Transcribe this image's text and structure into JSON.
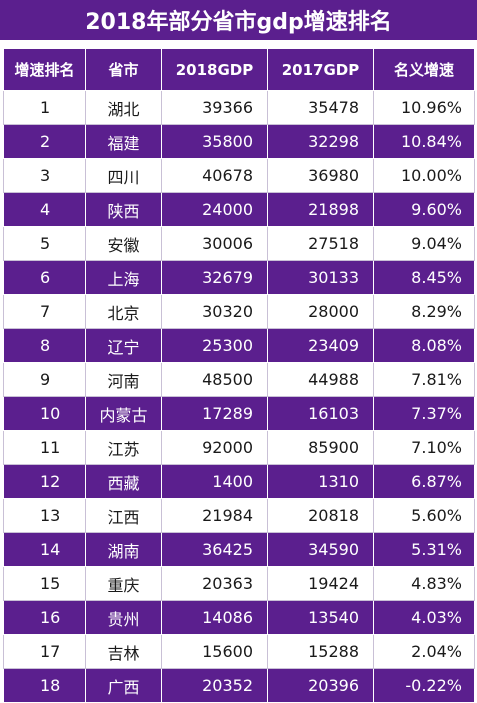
{
  "title": "2018年部分省市gdp增速排名",
  "headers": [
    "增速排名",
    "省市",
    "2018GDP",
    "2017GDP",
    "名义增速"
  ],
  "rows": [
    {
      "rank": "1",
      "region": "湖北",
      "gdp2018": "39366",
      "gdp2017": "35478",
      "growth": "10.96%"
    },
    {
      "rank": "2",
      "region": "福建",
      "gdp2018": "35800",
      "gdp2017": "32298",
      "growth": "10.84%"
    },
    {
      "rank": "3",
      "region": "四川",
      "gdp2018": "40678",
      "gdp2017": "36980",
      "growth": "10.00%"
    },
    {
      "rank": "4",
      "region": "陕西",
      "gdp2018": "24000",
      "gdp2017": "21898",
      "growth": "9.60%"
    },
    {
      "rank": "5",
      "region": "安徽",
      "gdp2018": "30006",
      "gdp2017": "27518",
      "growth": "9.04%"
    },
    {
      "rank": "6",
      "region": "上海",
      "gdp2018": "32679",
      "gdp2017": "30133",
      "growth": "8.45%"
    },
    {
      "rank": "7",
      "region": "北京",
      "gdp2018": "30320",
      "gdp2017": "28000",
      "growth": "8.29%"
    },
    {
      "rank": "8",
      "region": "辽宁",
      "gdp2018": "25300",
      "gdp2017": "23409",
      "growth": "8.08%"
    },
    {
      "rank": "9",
      "region": "河南",
      "gdp2018": "48500",
      "gdp2017": "44988",
      "growth": "7.81%"
    },
    {
      "rank": "10",
      "region": "内蒙古",
      "gdp2018": "17289",
      "gdp2017": "16103",
      "growth": "7.37%"
    },
    {
      "rank": "11",
      "region": "江苏",
      "gdp2018": "92000",
      "gdp2017": "85900",
      "growth": "7.10%"
    },
    {
      "rank": "12",
      "region": "西藏",
      "gdp2018": "1400",
      "gdp2017": "1310",
      "growth": "6.87%"
    },
    {
      "rank": "13",
      "region": "江西",
      "gdp2018": "21984",
      "gdp2017": "20818",
      "growth": "5.60%"
    },
    {
      "rank": "14",
      "region": "湖南",
      "gdp2018": "36425",
      "gdp2017": "34590",
      "growth": "5.31%"
    },
    {
      "rank": "15",
      "region": "重庆",
      "gdp2018": "20363",
      "gdp2017": "19424",
      "growth": "4.83%"
    },
    {
      "rank": "16",
      "region": "贵州",
      "gdp2018": "14086",
      "gdp2017": "13540",
      "growth": "4.03%"
    },
    {
      "rank": "17",
      "region": "吉林",
      "gdp2018": "15600",
      "gdp2017": "15288",
      "growth": "2.04%"
    },
    {
      "rank": "18",
      "region": "广西",
      "gdp2018": "20352",
      "gdp2017": "20396",
      "growth": "-0.22%"
    }
  ],
  "colors": {
    "header": "#5b1f8e",
    "alt_row": "#5b1f8e",
    "row": "#ffffff"
  }
}
